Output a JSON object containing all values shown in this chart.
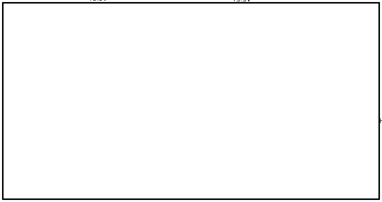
{
  "bg_color": "#ffffff",
  "line_color": "#000000",
  "gray_line_color": "#888888",
  "fig_width": 5.42,
  "fig_height": 2.87,
  "dpi": 100
}
